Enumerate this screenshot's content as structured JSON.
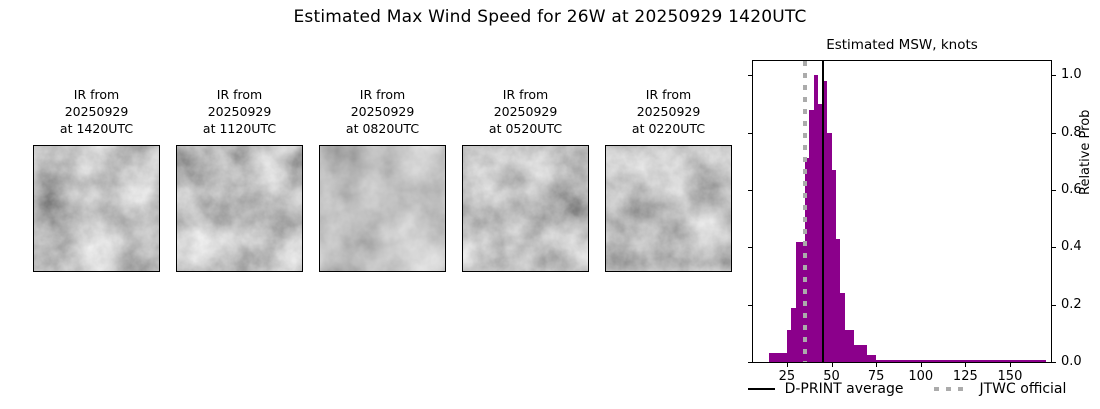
{
  "page": {
    "title": "Estimated Max Wind Speed for 26W at 20250929 1420UTC"
  },
  "satellite_images": [
    {
      "name": "ir-1420utc",
      "lines": [
        "IR from",
        "20250929",
        "at 1420UTC"
      ]
    },
    {
      "name": "ir-1120utc",
      "lines": [
        "IR from",
        "20250929",
        "at 1120UTC"
      ]
    },
    {
      "name": "ir-0820utc",
      "lines": [
        "IR from",
        "20250929",
        "at 0820UTC"
      ]
    },
    {
      "name": "ir-0520utc",
      "lines": [
        "IR from",
        "20250929",
        "at 0520UTC"
      ]
    },
    {
      "name": "ir-0220utc",
      "lines": [
        "IR from",
        "20250929",
        "at 0220UTC"
      ]
    }
  ],
  "chart_data": {
    "type": "bar",
    "title": "Estimated MSW, knots",
    "xlabel": "",
    "ylabel": "Relative Prob",
    "xlim": [
      6,
      173
    ],
    "ylim": [
      0,
      1.05
    ],
    "x_ticks": [
      25,
      50,
      75,
      100,
      125,
      150
    ],
    "y_ticks": [
      0,
      0.2,
      0.4,
      0.6,
      0.8,
      1.0
    ],
    "y_tick_labels": [
      "0.0",
      "0.2",
      "0.4",
      "0.6",
      "0.8",
      "1.0"
    ],
    "grid": false,
    "bar_color": "#8B008B",
    "bins": [
      {
        "from": 15,
        "to": 17.5,
        "prob": 0.03
      },
      {
        "from": 17.5,
        "to": 20,
        "prob": 0.03
      },
      {
        "from": 20,
        "to": 22.5,
        "prob": 0.03
      },
      {
        "from": 22.5,
        "to": 25,
        "prob": 0.03
      },
      {
        "from": 25,
        "to": 27.5,
        "prob": 0.11
      },
      {
        "from": 27.5,
        "to": 30,
        "prob": 0.19
      },
      {
        "from": 30,
        "to": 32.5,
        "prob": 0.42
      },
      {
        "from": 32.5,
        "to": 35,
        "prob": 0.42
      },
      {
        "from": 35,
        "to": 37.5,
        "prob": 0.71
      },
      {
        "from": 37.5,
        "to": 40,
        "prob": 0.88
      },
      {
        "from": 40,
        "to": 42.5,
        "prob": 1.0
      },
      {
        "from": 42.5,
        "to": 45,
        "prob": 0.9
      },
      {
        "from": 45,
        "to": 47.5,
        "prob": 0.98
      },
      {
        "from": 47.5,
        "to": 50,
        "prob": 0.8
      },
      {
        "from": 50,
        "to": 52.5,
        "prob": 0.67
      },
      {
        "from": 52.5,
        "to": 55,
        "prob": 0.43
      },
      {
        "from": 55,
        "to": 57.5,
        "prob": 0.24
      },
      {
        "from": 57.5,
        "to": 60,
        "prob": 0.11
      },
      {
        "from": 60,
        "to": 62.5,
        "prob": 0.11
      },
      {
        "from": 62.5,
        "to": 65,
        "prob": 0.06
      },
      {
        "from": 65,
        "to": 67.5,
        "prob": 0.06
      },
      {
        "from": 67.5,
        "to": 70,
        "prob": 0.06
      },
      {
        "from": 70,
        "to": 72.5,
        "prob": 0.025
      },
      {
        "from": 72.5,
        "to": 75,
        "prob": 0.025
      },
      {
        "from": 75,
        "to": 170,
        "prob": 0.008
      }
    ],
    "lines": [
      {
        "name": "dprint-average",
        "label": "D-PRINT average",
        "value_knots": 45,
        "style": "solid",
        "color": "#000000"
      },
      {
        "name": "jtwc-official",
        "label": "JTWC official",
        "value_knots": 35,
        "style": "dotted",
        "color": "#ABABAB"
      }
    ],
    "legend_position": "bottom"
  }
}
